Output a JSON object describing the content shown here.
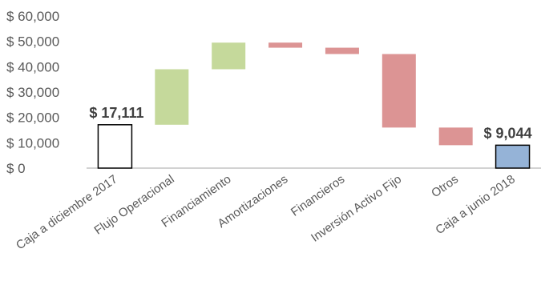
{
  "chart_data": {
    "type": "bar",
    "subtype": "waterfall",
    "title": "",
    "xlabel": "",
    "ylabel": "",
    "ylim": [
      0,
      60000
    ],
    "y_ticks": [
      "$ 0",
      "$ 10,000",
      "$ 20,000",
      "$ 30,000",
      "$ 40,000",
      "$ 50,000",
      "$ 60,000"
    ],
    "y_tick_values": [
      0,
      10000,
      20000,
      30000,
      40000,
      50000,
      60000
    ],
    "grid": false,
    "legend": "none",
    "categories": [
      "Caja a diciembre 2017",
      "Flujo Operacional",
      "Financiamiento",
      "Amortizaciones",
      "Financieros",
      "Inversión Activo Fijo",
      "Otros",
      "Caja a junio 2018"
    ],
    "bars": [
      {
        "kind": "total",
        "start": 0,
        "end": 17111,
        "label": "$ 17,111"
      },
      {
        "kind": "increase",
        "start": 17111,
        "end": 39000
      },
      {
        "kind": "increase",
        "start": 39000,
        "end": 49500
      },
      {
        "kind": "decrease",
        "start": 49500,
        "end": 47500
      },
      {
        "kind": "decrease",
        "start": 47500,
        "end": 45000
      },
      {
        "kind": "decrease",
        "start": 45000,
        "end": 16000
      },
      {
        "kind": "decrease",
        "start": 16000,
        "end": 9044
      },
      {
        "kind": "total",
        "start": 0,
        "end": 9044,
        "label": "$ 9,044"
      }
    ],
    "colors": {
      "increase": "#c5d99b",
      "decrease": "#dc9494",
      "total_start": "#ffffff",
      "total_end": "#95b3d7",
      "outline": "#000000",
      "axis": "#a6a6a6"
    }
  }
}
